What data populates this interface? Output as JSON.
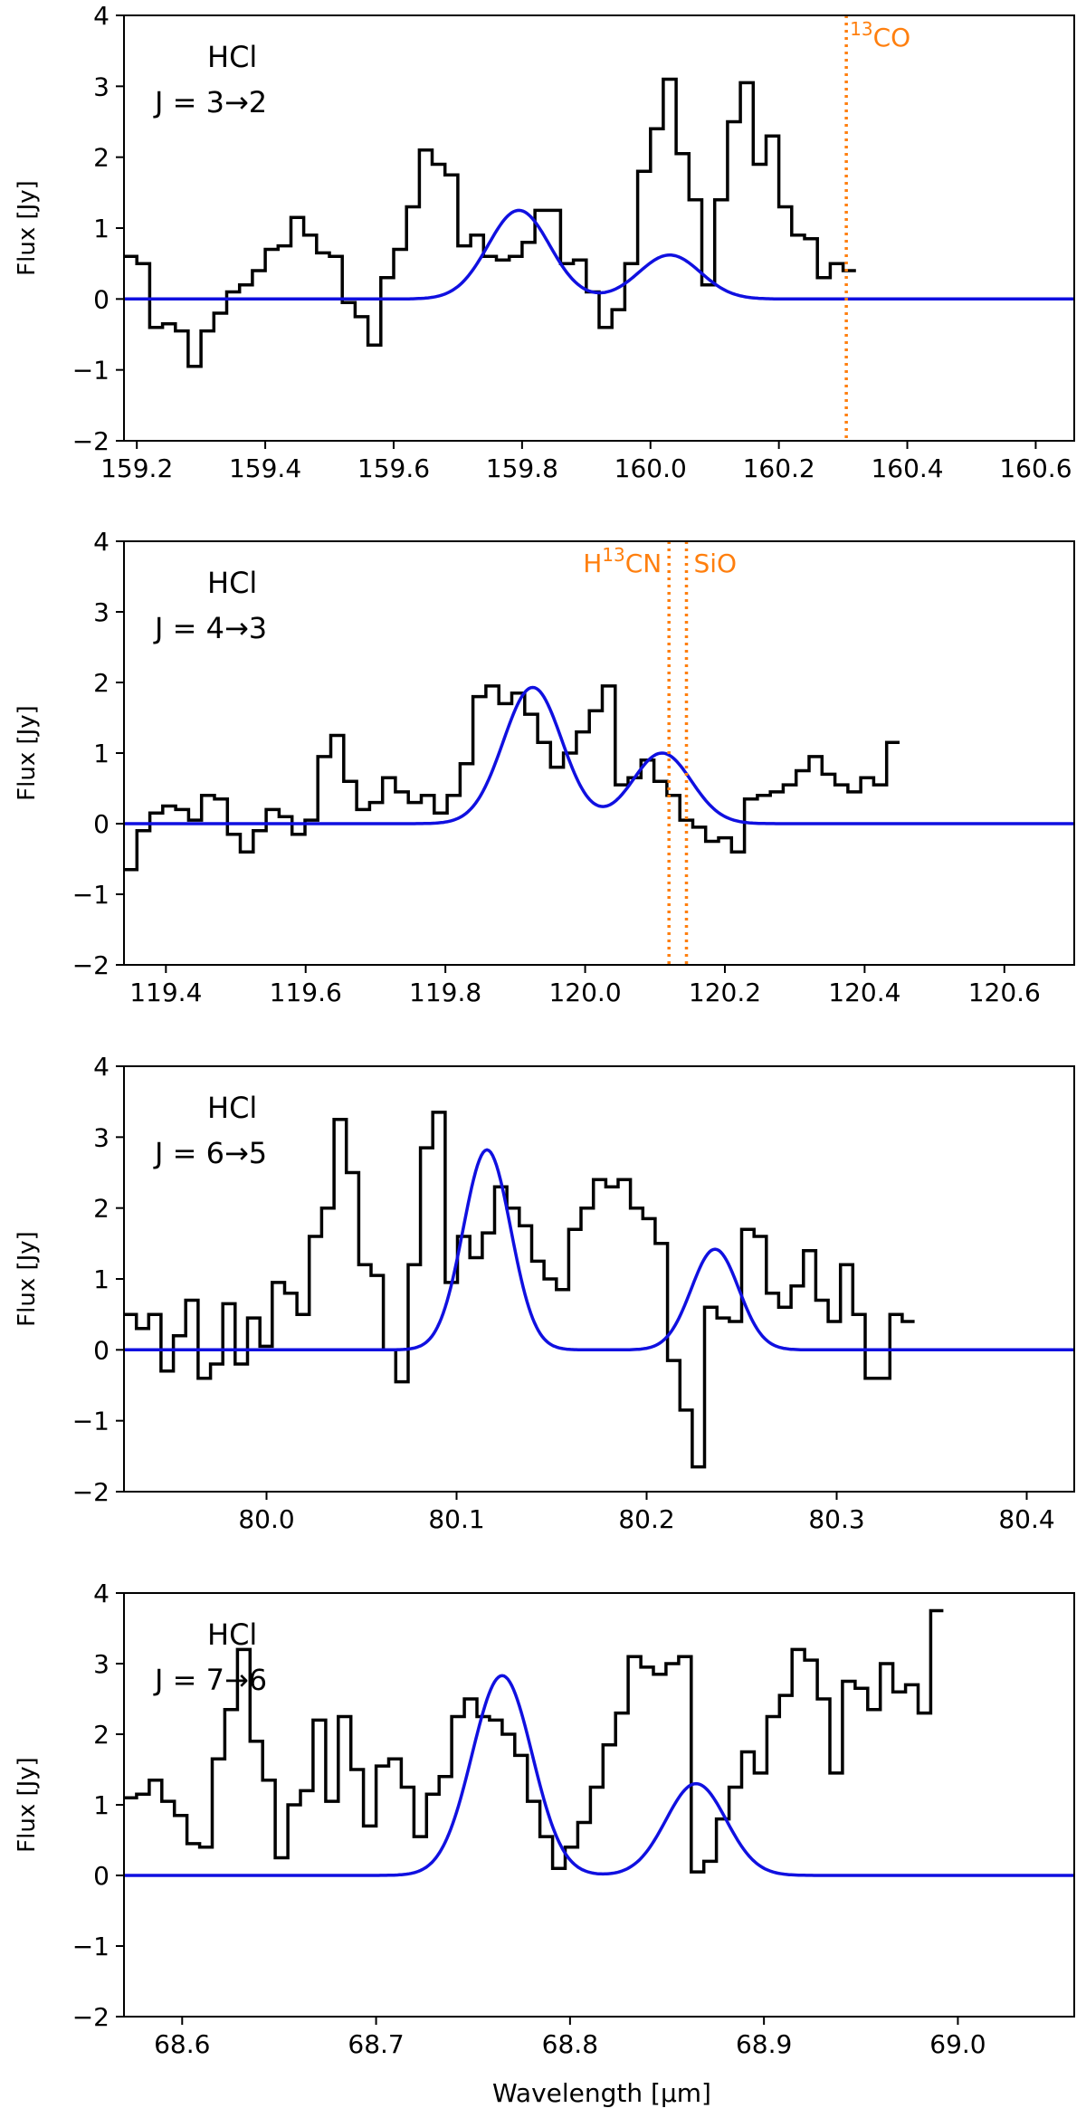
{
  "figure": {
    "xlabel": "Wavelength [μm]",
    "ylabel": "Flux [Jy]"
  },
  "colors": {
    "spectrum": "#000000",
    "fit": "#1010e0",
    "marker": "#ff7f0e",
    "axes": "#000000"
  },
  "chart_data": [
    {
      "type": "line",
      "title": "HCl J = 3→2",
      "label_species": "HCl",
      "label_transition": "J = 3→2",
      "ylabel": "Flux [Jy]",
      "xlim": [
        159.18,
        160.66
      ],
      "ylim": [
        -2,
        4
      ],
      "xticks": [
        159.2,
        159.4,
        159.6,
        159.8,
        160.0,
        160.2,
        160.4,
        160.6
      ],
      "xtick_labels": [
        "159.2",
        "159.4",
        "159.6",
        "159.8",
        "160.0",
        "160.2",
        "160.4",
        "160.6"
      ],
      "yticks": [
        -2,
        -1,
        0,
        1,
        2,
        3,
        4
      ],
      "ytick_labels": [
        "−2",
        "−1",
        "0",
        "1",
        "2",
        "3",
        "4"
      ],
      "series": [
        {
          "name": "observed spectrum",
          "style": "steps",
          "x_start": 159.18,
          "x_step": 0.02,
          "values": [
            0.6,
            0.5,
            -0.4,
            -0.35,
            -0.45,
            -0.95,
            -0.45,
            -0.2,
            0.1,
            0.2,
            0.4,
            0.7,
            0.75,
            1.15,
            0.9,
            0.65,
            0.6,
            -0.05,
            -0.25,
            -0.65,
            0.3,
            0.7,
            1.3,
            2.1,
            1.9,
            1.75,
            0.75,
            0.9,
            0.6,
            0.55,
            0.6,
            0.8,
            1.25,
            1.25,
            0.5,
            0.55,
            0.1,
            -0.4,
            -0.15,
            0.5,
            1.8,
            2.4,
            3.1,
            2.05,
            1.4,
            0.2,
            1.4,
            2.5,
            3.05,
            1.9,
            2.3,
            1.3,
            0.9,
            0.85,
            0.3,
            0.5,
            0.4
          ]
        },
        {
          "name": "Gaussian fit",
          "style": "gaussians",
          "components": [
            {
              "center": 159.795,
              "amplitude": 1.25,
              "sigma": 0.048
            },
            {
              "center": 160.03,
              "amplitude": 0.62,
              "sigma": 0.048
            }
          ]
        }
      ],
      "markers": [
        {
          "label": "13CO",
          "x": 160.305
        }
      ]
    },
    {
      "type": "line",
      "title": "HCl J = 4→3",
      "label_species": "HCl",
      "label_transition": "J = 4→3",
      "ylabel": "Flux [Jy]",
      "xlim": [
        119.34,
        120.7
      ],
      "ylim": [
        -2,
        4
      ],
      "xticks": [
        119.4,
        119.6,
        119.8,
        120.0,
        120.2,
        120.4,
        120.6
      ],
      "xtick_labels": [
        "119.4",
        "119.6",
        "119.8",
        "120.0",
        "120.2",
        "120.4",
        "120.6"
      ],
      "yticks": [
        -2,
        -1,
        0,
        1,
        2,
        3,
        4
      ],
      "ytick_labels": [
        "−2",
        "−1",
        "0",
        "1",
        "2",
        "3",
        "4"
      ],
      "series": [
        {
          "name": "observed spectrum",
          "style": "steps",
          "x_start": 119.34,
          "x_step": 0.0185,
          "values": [
            -0.65,
            -0.1,
            0.15,
            0.25,
            0.2,
            0.05,
            0.4,
            0.35,
            -0.15,
            -0.4,
            -0.1,
            0.2,
            0.1,
            -0.15,
            0.05,
            0.95,
            1.25,
            0.6,
            0.2,
            0.3,
            0.65,
            0.45,
            0.3,
            0.4,
            0.15,
            0.4,
            0.85,
            1.8,
            1.95,
            1.7,
            1.85,
            1.55,
            1.15,
            0.8,
            1.0,
            1.3,
            1.6,
            1.95,
            0.55,
            0.65,
            0.9,
            0.6,
            0.4,
            0.05,
            -0.05,
            -0.25,
            -0.2,
            -0.4,
            0.35,
            0.4,
            0.45,
            0.55,
            0.75,
            0.95,
            0.7,
            0.55,
            0.45,
            0.65,
            0.55,
            1.15
          ]
        },
        {
          "name": "Gaussian fit",
          "style": "gaussians",
          "components": [
            {
              "center": 119.925,
              "amplitude": 1.93,
              "sigma": 0.042
            },
            {
              "center": 120.11,
              "amplitude": 1.0,
              "sigma": 0.042
            }
          ]
        }
      ],
      "markers": [
        {
          "label": "H13CN",
          "x": 120.12
        },
        {
          "label": "SiO",
          "x": 120.145
        }
      ]
    },
    {
      "type": "line",
      "title": "HCl J = 6→5",
      "label_species": "HCl",
      "label_transition": "J = 6→5",
      "ylabel": "Flux [Jy]",
      "xlim": [
        79.925,
        80.425
      ],
      "ylim": [
        -2,
        4
      ],
      "xticks": [
        80.0,
        80.1,
        80.2,
        80.3,
        80.4
      ],
      "xtick_labels": [
        "80.0",
        "80.1",
        "80.2",
        "80.3",
        "80.4"
      ],
      "yticks": [
        -2,
        -1,
        0,
        1,
        2,
        3,
        4
      ],
      "ytick_labels": [
        "−2",
        "−1",
        "0",
        "1",
        "2",
        "3",
        "4"
      ],
      "series": [
        {
          "name": "observed spectrum",
          "style": "steps",
          "x_start": 79.925,
          "x_step": 0.0065,
          "values": [
            0.5,
            0.3,
            0.5,
            -0.3,
            0.2,
            0.7,
            -0.4,
            -0.2,
            0.65,
            -0.2,
            0.45,
            0.05,
            0.95,
            0.8,
            0.5,
            1.6,
            2.0,
            3.25,
            2.5,
            1.2,
            1.05,
            0.0,
            -0.45,
            1.2,
            2.85,
            3.35,
            0.95,
            1.6,
            1.3,
            1.65,
            2.3,
            2.0,
            1.75,
            1.25,
            1.0,
            0.85,
            1.7,
            2.0,
            2.4,
            2.3,
            2.4,
            2.0,
            1.85,
            1.5,
            -0.15,
            -0.85,
            -1.65,
            0.6,
            0.45,
            0.4,
            1.7,
            1.6,
            0.8,
            0.6,
            0.9,
            1.4,
            0.7,
            0.4,
            1.2,
            0.5,
            -0.4,
            -0.4,
            0.5,
            0.4
          ]
        },
        {
          "name": "Gaussian fit",
          "style": "gaussians",
          "components": [
            {
              "center": 80.116,
              "amplitude": 2.82,
              "sigma": 0.0125
            },
            {
              "center": 80.236,
              "amplitude": 1.42,
              "sigma": 0.0125
            }
          ]
        }
      ],
      "markers": []
    },
    {
      "type": "line",
      "title": "HCl J = 7→6",
      "label_species": "HCl",
      "label_transition": "J = 7→6",
      "ylabel": "Flux [Jy]",
      "xlabel": "Wavelength [μm]",
      "xlim": [
        68.57,
        69.06
      ],
      "ylim": [
        -2,
        4
      ],
      "xticks": [
        68.6,
        68.7,
        68.8,
        68.9,
        69.0
      ],
      "xtick_labels": [
        "68.6",
        "68.7",
        "68.8",
        "68.9",
        "69.0"
      ],
      "yticks": [
        -2,
        -1,
        0,
        1,
        2,
        3,
        4
      ],
      "ytick_labels": [
        "−2",
        "−1",
        "0",
        "1",
        "2",
        "3",
        "4"
      ],
      "series": [
        {
          "name": "observed spectrum",
          "style": "steps",
          "x_start": 68.57,
          "x_step": 0.0065,
          "values": [
            1.1,
            1.15,
            1.35,
            1.05,
            0.85,
            0.45,
            0.4,
            1.65,
            2.35,
            3.2,
            1.9,
            1.35,
            0.25,
            1.0,
            1.2,
            2.2,
            1.05,
            2.25,
            1.5,
            0.7,
            1.55,
            1.65,
            1.25,
            0.55,
            1.15,
            1.4,
            2.25,
            2.5,
            2.25,
            2.2,
            2.0,
            1.7,
            1.05,
            0.55,
            0.1,
            0.4,
            0.75,
            1.25,
            1.85,
            2.3,
            3.1,
            2.95,
            2.85,
            3.0,
            3.1,
            0.05,
            0.2,
            0.8,
            1.25,
            1.75,
            1.45,
            2.25,
            2.55,
            3.2,
            3.05,
            2.5,
            1.45,
            2.75,
            2.65,
            2.35,
            3.0,
            2.6,
            2.7,
            2.3,
            3.75
          ]
        },
        {
          "name": "Gaussian fit",
          "style": "gaussians",
          "components": [
            {
              "center": 68.765,
              "amplitude": 2.83,
              "sigma": 0.0155
            },
            {
              "center": 68.865,
              "amplitude": 1.3,
              "sigma": 0.0155
            }
          ]
        }
      ],
      "markers": []
    }
  ]
}
